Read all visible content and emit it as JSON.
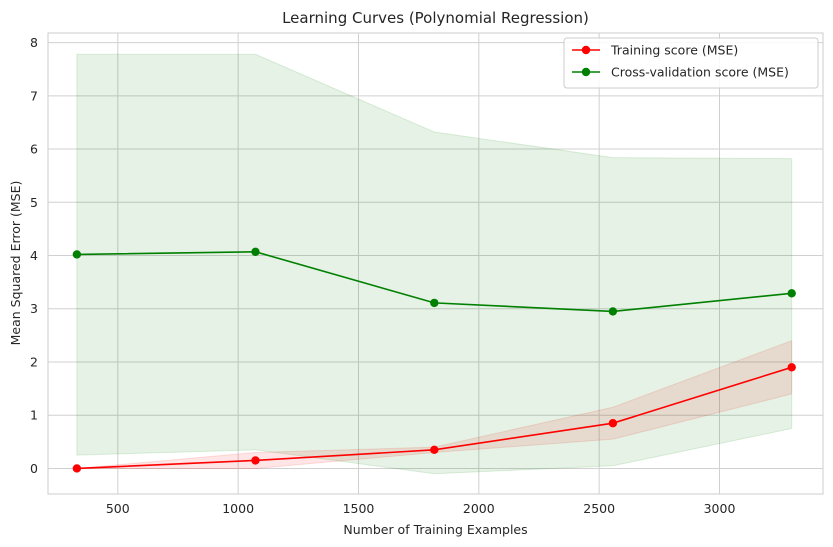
{
  "chart_data": {
    "type": "line",
    "title": "Learning Curves (Polynomial Regression)",
    "xlabel": "Number of Training Examples",
    "ylabel": "Mean Squared Error (MSE)",
    "xlim": [
      210,
      3430
    ],
    "ylim": [
      -0.48,
      8.18
    ],
    "x_ticks": [
      500,
      1000,
      1500,
      2000,
      2500,
      3000
    ],
    "y_ticks": [
      0,
      1,
      2,
      3,
      4,
      5,
      6,
      7,
      8
    ],
    "grid": true,
    "legend_position": "top-right",
    "x": [
      330,
      1072,
      1815,
      2557,
      3300
    ],
    "series": [
      {
        "name": "Training score (MSE)",
        "color": "#ff0000",
        "values": [
          0.0,
          0.15,
          0.35,
          0.85,
          1.9
        ],
        "band_lower": [
          0.0,
          0.0,
          0.3,
          0.55,
          1.4
        ],
        "band_upper": [
          0.0,
          0.3,
          0.4,
          1.15,
          2.4
        ]
      },
      {
        "name": "Cross-validation score (MSE)",
        "color": "#008000",
        "values": [
          4.02,
          4.07,
          3.11,
          2.95,
          3.29
        ],
        "band_lower": [
          0.25,
          0.35,
          -0.1,
          0.05,
          0.75
        ],
        "band_upper": [
          7.78,
          7.78,
          6.32,
          5.84,
          5.82
        ]
      }
    ]
  }
}
